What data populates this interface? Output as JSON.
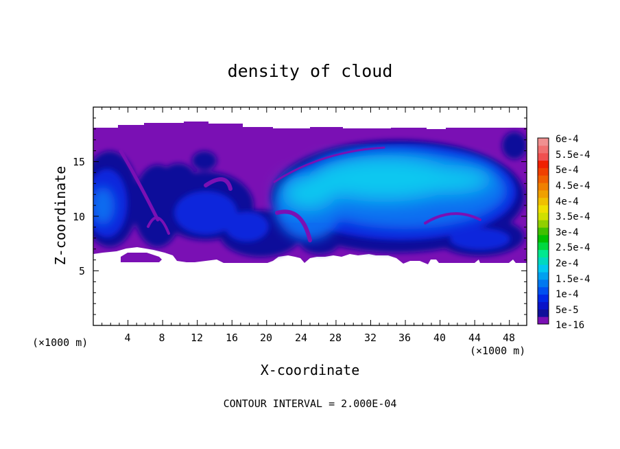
{
  "chart_data": {
    "type": "heatmap",
    "title": "density of cloud",
    "xlabel": "X-coordinate",
    "ylabel": "Z-coordinate",
    "x_unit_label": "(×1000 m)",
    "y_unit_label": "(×1000 m)",
    "footer": "CONTOUR INTERVAL = 2.000E-04",
    "xlim": [
      0,
      50
    ],
    "ylim": [
      0,
      20
    ],
    "x_ticks": [
      4,
      8,
      12,
      16,
      20,
      24,
      28,
      32,
      36,
      40,
      44,
      48
    ],
    "x_tick_labels": [
      "4",
      "8",
      "12",
      "16",
      "20",
      "24",
      "28",
      "32",
      "36",
      "40",
      "44",
      "48"
    ],
    "y_ticks": [
      5,
      10,
      15
    ],
    "y_tick_labels": [
      "5",
      "10",
      "15"
    ],
    "colorbar": {
      "labels": [
        "1e-16",
        "5e-5",
        "1e-4",
        "1.5e-4",
        "2e-4",
        "2.5e-4",
        "3e-4",
        "3.5e-4",
        "4e-4",
        "4.5e-4",
        "5e-4",
        "5.5e-4",
        "6e-4"
      ],
      "colors": [
        "#7a10b4",
        "#10109a",
        "#0a14c8",
        "#0028e6",
        "#0050f0",
        "#0078f0",
        "#00a0f0",
        "#00c8f0",
        "#00d8c0",
        "#00e890",
        "#00d840",
        "#00c000",
        "#40c000",
        "#90d000",
        "#d0e000",
        "#f0e000",
        "#f0c000",
        "#f0a000",
        "#f08000",
        "#f06000",
        "#f04000",
        "#f02000",
        "#f05050",
        "#f07070",
        "#f09090"
      ]
    },
    "cloud_base_approx": 6.5,
    "cloud_top_approx": 18,
    "max_density_approx": 0.00016
  }
}
